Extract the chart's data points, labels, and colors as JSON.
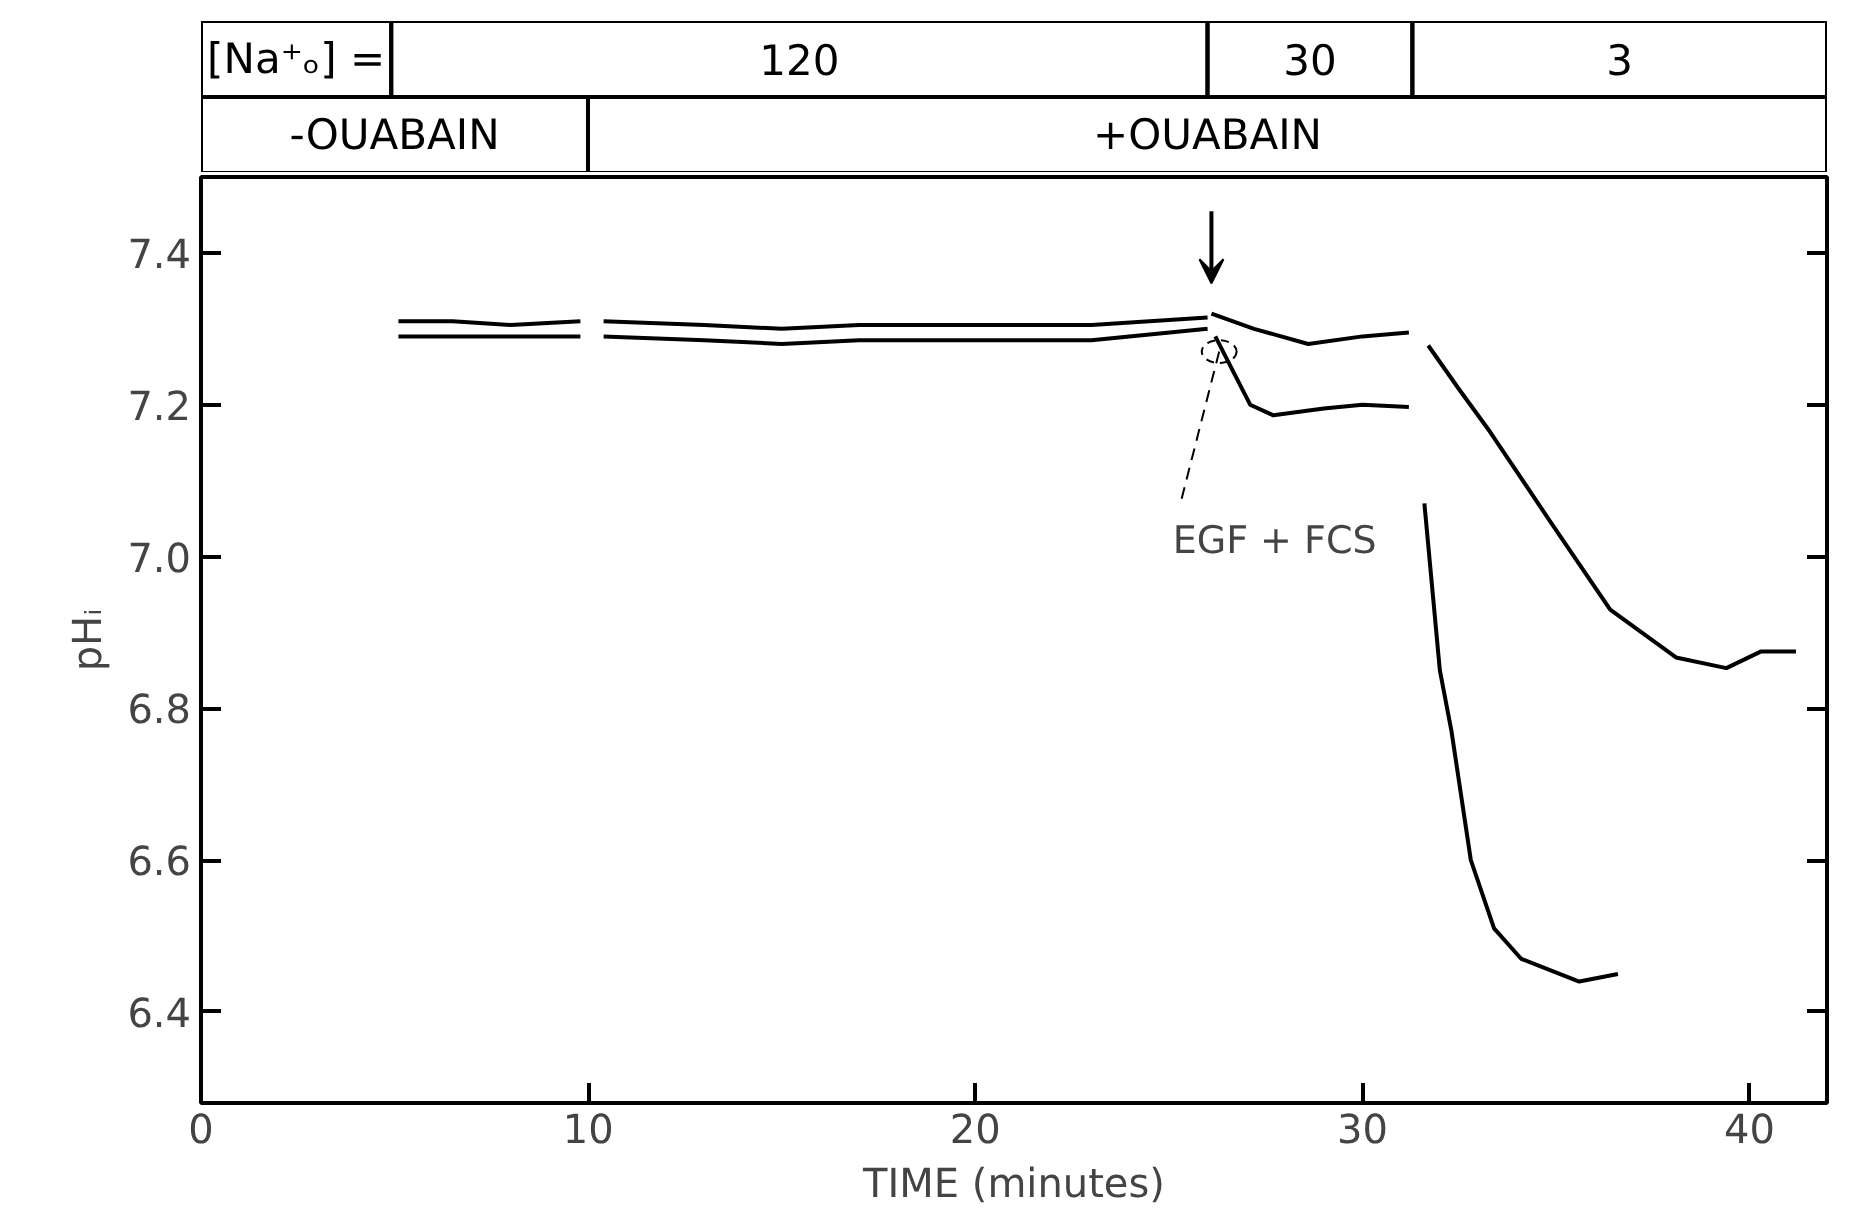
{
  "chart_data": {
    "type": "line",
    "xlabel": "TIME (minutes)",
    "ylabel": "pHᵢ",
    "xlim": [
      0,
      42
    ],
    "ylim": [
      6.28,
      7.5
    ],
    "xticks": [
      0,
      10,
      20,
      30,
      40
    ],
    "yticks": [
      {
        "value": 6.4,
        "label": "6.4"
      },
      {
        "value": 6.6,
        "label": "6.6"
      },
      {
        "value": 6.8,
        "label": "6.8"
      },
      {
        "value": 7.0,
        "label": "7.0"
      },
      {
        "value": 7.2,
        "label": "7.2"
      },
      {
        "value": 7.4,
        "label": "7.4"
      }
    ],
    "grid": false,
    "marker": "none",
    "line_style": "solid",
    "series": [
      {
        "color": "#000000",
        "x": [
          5.1,
          6.5,
          8,
          9.8,
          10.1,
          10.4,
          13,
          15,
          17,
          20,
          23,
          26.0,
          26.05,
          26.1,
          27.2,
          28.6,
          30,
          31.2,
          31.45,
          31.7,
          32.5,
          33.3,
          34.8,
          36.4,
          38.1,
          39.4,
          40.3,
          41.2
        ],
        "values": [
          7.31,
          7.31,
          7.305,
          7.31,
          null,
          7.31,
          7.305,
          7.3,
          7.305,
          7.305,
          7.305,
          7.315,
          null,
          7.32,
          7.3,
          7.28,
          7.29,
          7.295,
          null,
          7.278,
          7.22,
          7.164,
          7.05,
          6.93,
          6.867,
          6.853,
          6.875,
          6.875
        ]
      },
      {
        "color": "#000000",
        "x": [
          5.1,
          7,
          9.8,
          10.1,
          10.4,
          13,
          15,
          17,
          20,
          23,
          26.0,
          26.1,
          26.2,
          26.7,
          27.1,
          27.7,
          29,
          30,
          31.2,
          31.4,
          31.6,
          32.0,
          32.3,
          32.8,
          33.4,
          34.1,
          35.6,
          36.6
        ],
        "values": [
          7.29,
          7.29,
          7.29,
          null,
          7.29,
          7.285,
          7.28,
          7.285,
          7.285,
          7.285,
          7.3,
          null,
          7.29,
          7.24,
          7.2,
          7.186,
          7.195,
          7.2,
          7.197,
          null,
          7.07,
          6.85,
          6.77,
          6.6,
          6.51,
          6.47,
          6.44,
          6.45
        ]
      }
    ],
    "annotations": [
      "[Na⁺ₒ] =",
      "120",
      "30",
      "3",
      "-OUABAIN",
      "+OUABAIN",
      {
        "text": "EGF + FCS",
        "x": 26.3,
        "y": 7.27
      }
    ]
  }
}
